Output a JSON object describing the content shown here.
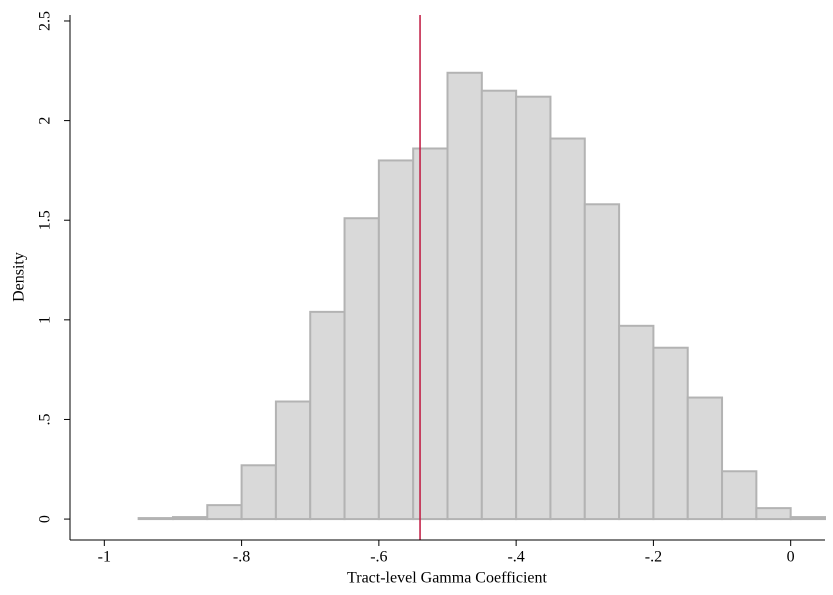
{
  "chart_data": {
    "type": "histogram",
    "xlabel": "Tract-level Gamma Coefficient",
    "ylabel": "Density",
    "bins": [
      -0.95,
      -0.9,
      -0.85,
      -0.8,
      -0.75,
      -0.7,
      -0.65,
      -0.6,
      -0.55,
      -0.5,
      -0.45,
      -0.4,
      -0.35,
      -0.3,
      -0.25,
      -0.2,
      -0.15,
      -0.1,
      -0.05,
      0,
      0.05
    ],
    "values": [
      0.005,
      0.01,
      0.07,
      0.27,
      0.59,
      1.04,
      1.51,
      1.8,
      1.86,
      2.24,
      2.15,
      2.12,
      1.91,
      1.58,
      0.97,
      0.86,
      0.61,
      0.24,
      0.055,
      0.01
    ],
    "color": "#d9d9d9",
    "edge_color": "#b3b3b3",
    "vline": {
      "value": -0.54,
      "color": "#c0173f"
    },
    "xlim": [
      -1.05,
      0.05
    ],
    "xticks": [
      {
        "value": -1,
        "label": "-1"
      },
      {
        "value": -0.8,
        "label": "-.8"
      },
      {
        "value": -0.6,
        "label": "-.6"
      },
      {
        "value": -0.4,
        "label": "-.4"
      },
      {
        "value": -0.2,
        "label": "-.2"
      },
      0
    ],
    "ylim": [
      -0.105,
      2.53
    ],
    "yticks": [
      0,
      {
        "value": 0.5,
        "label": ".5"
      },
      1,
      1.5,
      2,
      2.5
    ],
    "grid": false
  }
}
